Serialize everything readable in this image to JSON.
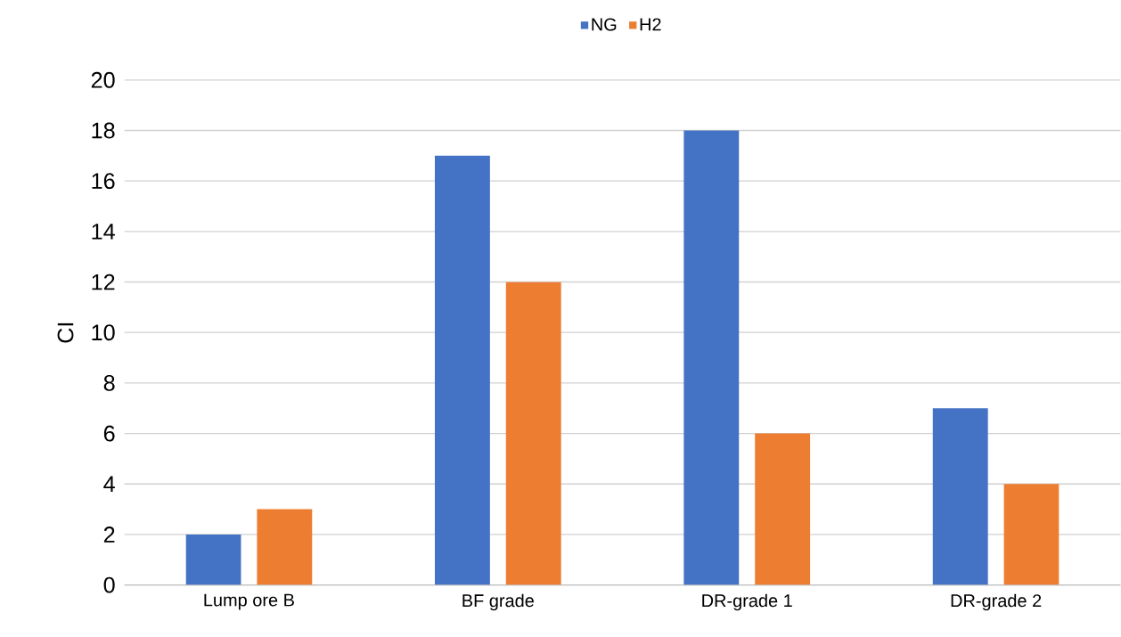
{
  "chart_data": {
    "type": "bar",
    "ylabel": "CI",
    "categories": [
      "Lump ore B",
      "BF grade",
      "DR-grade 1",
      "DR-grade 2"
    ],
    "series": [
      {
        "name": "NG",
        "color": "#4472c4",
        "values": [
          2,
          17,
          18,
          7
        ]
      },
      {
        "name": "H2",
        "color": "#ed7d31",
        "values": [
          3,
          12,
          6,
          4
        ]
      }
    ],
    "ylim": [
      0,
      20
    ],
    "yticks": [
      0,
      2,
      4,
      6,
      8,
      10,
      12,
      14,
      16,
      18,
      20
    ],
    "grid": "y",
    "legend": "top"
  }
}
